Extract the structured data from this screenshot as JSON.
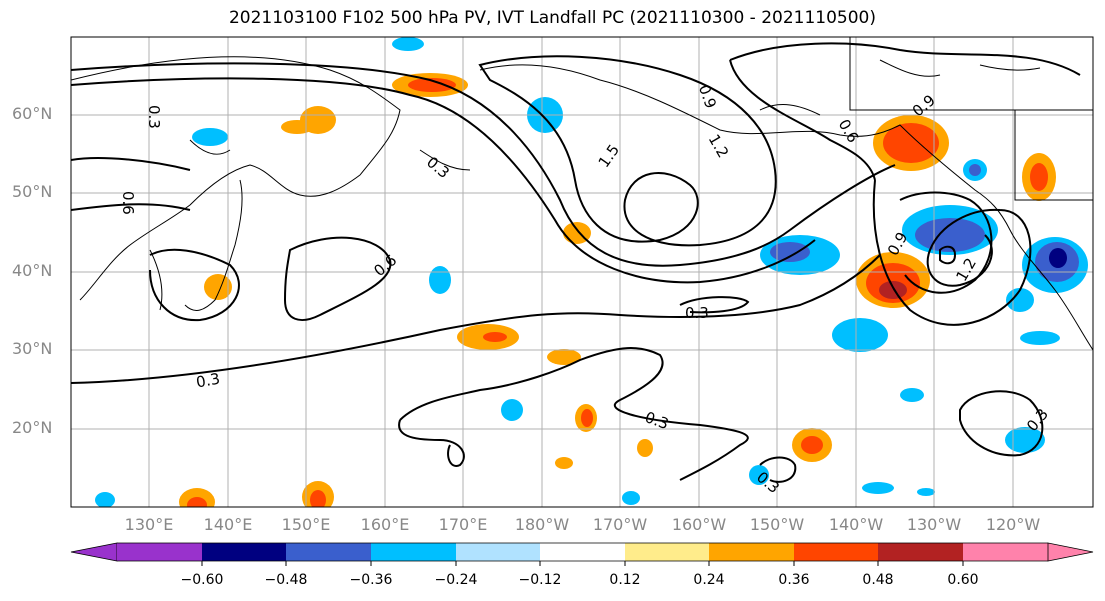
{
  "title": "2021103100 F102 500 hPa PV, IVT Landfall PC (2021110300 - 2021110500)",
  "lat_labels": [
    "60°N",
    "50°N",
    "40°N",
    "30°N",
    "20°N"
  ],
  "lon_labels": [
    "130°E",
    "140°E",
    "150°E",
    "160°E",
    "170°E",
    "180°W",
    "170°W",
    "160°W",
    "150°W",
    "140°W",
    "130°W",
    "120°W"
  ],
  "contour_labels": [
    "0.3",
    "0.6",
    "0.9",
    "1.2",
    "1.5"
  ],
  "colorbar": {
    "ticks": [
      "−0.60",
      "−0.48",
      "−0.36",
      "−0.24",
      "−0.12",
      "0.12",
      "0.24",
      "0.36",
      "0.48",
      "0.60"
    ],
    "colors": [
      "#9932cc",
      "#000080",
      "#3a5fcd",
      "#00bfff",
      "#b0e2ff",
      "#ffffff",
      "#ffec8b",
      "#ffa500",
      "#ff4500",
      "#b22222",
      "#ff82ab"
    ]
  }
}
